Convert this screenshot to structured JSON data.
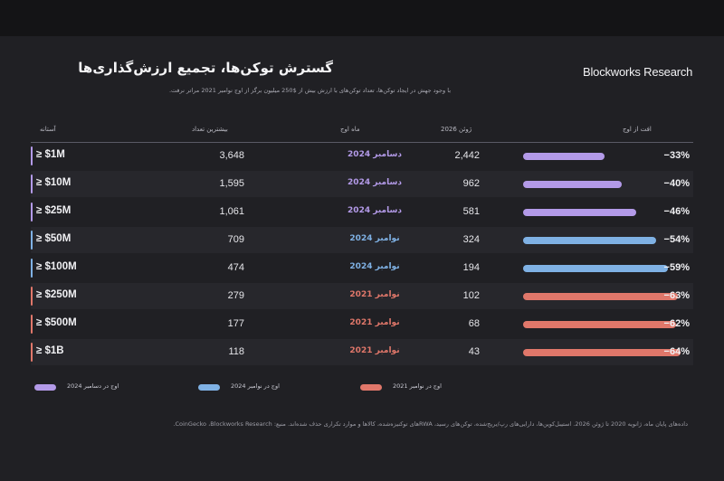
{
  "header": {
    "brand": "Blockworks Research",
    "title": "گسترش توکن‌ها، تجمیع ارزش‌گذاری‌ها",
    "subtitle": "با وجود جهش در ایجاد توکن‌ها، تعداد توکن‌های با ارزش بیش از $250 میلیون برگز از اوج نوامبر 2021 مراتر نرفت."
  },
  "columns": {
    "threshold": "آستانه",
    "max_count": "بیشترین تعداد",
    "peak_month": "ماه اوج",
    "june_2026": "ژوئن 2026",
    "drop": "افت از اوج"
  },
  "colors": {
    "purple": "#b39ae8",
    "blue": "#7fb1e4",
    "red": "#e0776a"
  },
  "chart_data": {
    "type": "table",
    "rows": [
      {
        "threshold": "≥ $1M",
        "max_count": "3,648",
        "peak_month": "دسامبر 2024",
        "june_2026": "2,442",
        "drop": "−33%",
        "drop_value": -33,
        "group": "purple"
      },
      {
        "threshold": "≥ $10M",
        "max_count": "1,595",
        "peak_month": "دسامبر 2024",
        "june_2026": "962",
        "drop": "−40%",
        "drop_value": -40,
        "group": "purple"
      },
      {
        "threshold": "≥ $25M",
        "max_count": "1,061",
        "peak_month": "دسامبر 2024",
        "june_2026": "581",
        "drop": "−46%",
        "drop_value": -46,
        "group": "purple"
      },
      {
        "threshold": "≥ $50M",
        "max_count": "709",
        "peak_month": "نوامبر 2024",
        "june_2026": "324",
        "drop": "−54%",
        "drop_value": -54,
        "group": "blue"
      },
      {
        "threshold": "≥ $100M",
        "max_count": "474",
        "peak_month": "نوامبر 2024",
        "june_2026": "194",
        "drop": "−59%",
        "drop_value": -59,
        "group": "blue"
      },
      {
        "threshold": "≥ $250M",
        "max_count": "279",
        "peak_month": "نوامبر 2021",
        "june_2026": "102",
        "drop": "−63%",
        "drop_value": -63,
        "group": "red"
      },
      {
        "threshold": "≥ $500M",
        "max_count": "177",
        "peak_month": "نوامبر 2021",
        "june_2026": "68",
        "drop": "−62%",
        "drop_value": -62,
        "group": "red"
      },
      {
        "threshold": "≥ $1B",
        "max_count": "118",
        "peak_month": "نوامبر 2021",
        "june_2026": "43",
        "drop": "−64%",
        "drop_value": -64,
        "group": "red"
      }
    ]
  },
  "legend": [
    {
      "label": "اوج در دسامبر 2024",
      "color": "purple"
    },
    {
      "label": "اوج در نوامبر 2024",
      "color": "blue"
    },
    {
      "label": "اوج در نوامبر 2021",
      "color": "red"
    }
  ],
  "footer": {
    "source": "داده‌های پایان ماه، ژانویه 2020 تا ژوئن 2026. استیبل‌کوین‌ها، دارایی‌های رپ/بریج‌شده، توکن‌های رسید، RWAهای توکنیزه‌شده، کالاها و موارد تکراری حذف شده‌اند. منبع: CoinGecko ،Blockworks Research."
  }
}
